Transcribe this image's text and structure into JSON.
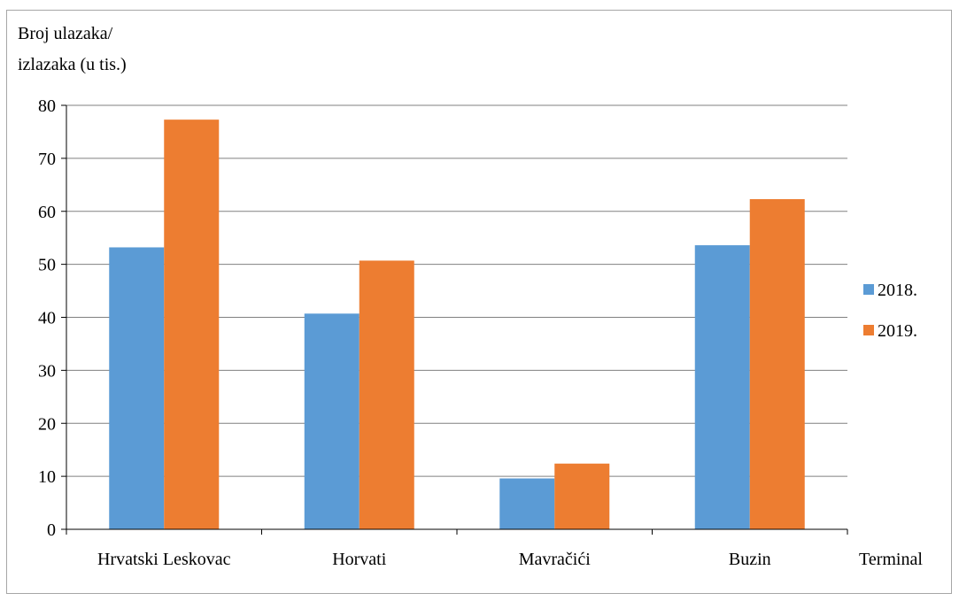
{
  "chart_data": {
    "type": "bar",
    "ylabel_lines": [
      "Broj ulazaka/",
      "izlazaka (u tis.)"
    ],
    "xlabel": "Terminal",
    "categories": [
      "Hrvatski Leskovac",
      "Horvati",
      "Mavračići",
      "Buzin"
    ],
    "series": [
      {
        "name": "2018.",
        "values": [
          53.2,
          40.7,
          9.6,
          53.6
        ],
        "color": "#5b9bd5"
      },
      {
        "name": "2019.",
        "values": [
          77.3,
          50.7,
          12.4,
          62.3
        ],
        "color": "#ed7d31"
      }
    ],
    "ylim": [
      0,
      80
    ],
    "yticks": [
      "0",
      "10",
      "20",
      "30",
      "40",
      "50",
      "60",
      "70",
      "80"
    ],
    "grid": true,
    "legend_position": "right"
  }
}
